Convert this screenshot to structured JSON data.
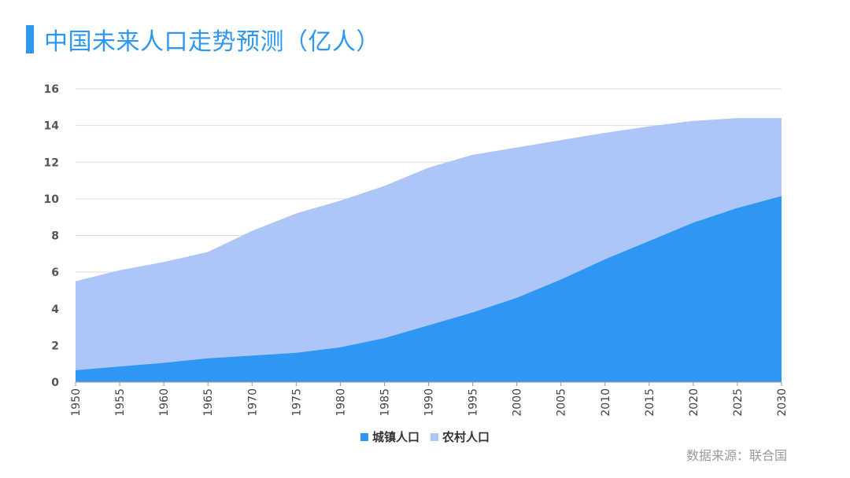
{
  "title": "中国未来人口走势预测（亿人）",
  "source": "数据来源：联合国",
  "colors": {
    "accent": "#2E97F3",
    "urban": "#2E97F3",
    "rural": "#ADC6F7",
    "grid": "#dddddd"
  },
  "chart_data": {
    "type": "area",
    "stacked": true,
    "title": "中国未来人口走势预测（亿人）",
    "xlabel": "",
    "ylabel": "",
    "ylim": [
      0,
      16
    ],
    "yticks": [
      0,
      2,
      4,
      6,
      8,
      10,
      12,
      14,
      16
    ],
    "x": [
      1950,
      1955,
      1960,
      1965,
      1970,
      1975,
      1980,
      1985,
      1990,
      1995,
      2000,
      2005,
      2010,
      2015,
      2020,
      2025,
      2030
    ],
    "series": [
      {
        "name": "城镇人口",
        "values": [
          0.65,
          0.85,
          1.05,
          1.3,
          1.45,
          1.6,
          1.9,
          2.4,
          3.1,
          3.8,
          4.6,
          5.6,
          6.7,
          7.7,
          8.7,
          9.5,
          10.15
        ]
      },
      {
        "name": "农村人口",
        "values": [
          4.85,
          5.25,
          5.5,
          5.8,
          6.8,
          7.6,
          8.0,
          8.3,
          8.6,
          8.6,
          8.2,
          7.6,
          6.9,
          6.25,
          5.55,
          4.9,
          4.25
        ]
      }
    ],
    "legend": [
      "城镇人口",
      "农村人口"
    ],
    "legend_position": "bottom"
  }
}
